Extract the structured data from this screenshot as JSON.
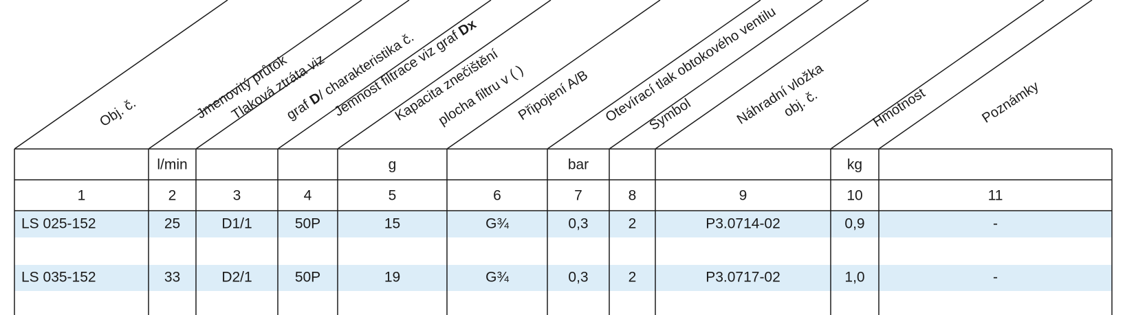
{
  "headers": [
    {
      "lines": [
        [
          {
            "text": "Obj. č."
          }
        ]
      ]
    },
    {
      "lines": [
        [
          {
            "text": "Jmenovitý průtok"
          }
        ]
      ]
    },
    {
      "lines": [
        [
          {
            "text": "Tlaková ztráta viz"
          }
        ],
        [
          {
            "text": "graf "
          },
          {
            "text": "D",
            "bold": true
          },
          {
            "text": "/ charakteristika č."
          }
        ]
      ]
    },
    {
      "lines": [
        [
          {
            "text": "Jemnost filtrace viz graf "
          },
          {
            "text": "Dx",
            "bold": true
          }
        ]
      ]
    },
    {
      "lines": [
        [
          {
            "text": "Kapacita znečištění"
          }
        ],
        [
          {
            "text": "plocha filtru v ( )"
          }
        ]
      ]
    },
    {
      "lines": [
        [
          {
            "text": "Připojení  A/B"
          }
        ]
      ]
    },
    {
      "lines": [
        [
          {
            "text": "Otevírací tlak obtokového ventilu"
          }
        ]
      ]
    },
    {
      "lines": [
        [
          {
            "text": "Symbol"
          }
        ]
      ]
    },
    {
      "lines": [
        [
          {
            "text": "Náhradní vložka"
          }
        ],
        [
          {
            "text": "obj. č."
          }
        ]
      ]
    },
    {
      "lines": [
        [
          {
            "text": "Hmotnost"
          }
        ]
      ]
    },
    {
      "lines": [
        [
          {
            "text": "Poznámky"
          }
        ]
      ]
    }
  ],
  "table": {
    "units": [
      null,
      "l/min",
      null,
      null,
      "g",
      null,
      "bar",
      null,
      null,
      "kg",
      null
    ],
    "numbers": [
      "1",
      "2",
      "3",
      "4",
      "5",
      "6",
      "7",
      "8",
      "9",
      "10",
      "11"
    ],
    "rows": [
      [
        "LS 025-152",
        "25",
        "D1/1",
        "50P",
        "15",
        "G¾",
        "0,3",
        "2",
        "P3.0714-02",
        "0,9",
        "-"
      ],
      [
        "LS 035-152",
        "33",
        "D2/1",
        "50P",
        "19",
        "G¾",
        "0,3",
        "2",
        "P3.0717-02",
        "1,0",
        "-"
      ]
    ]
  }
}
